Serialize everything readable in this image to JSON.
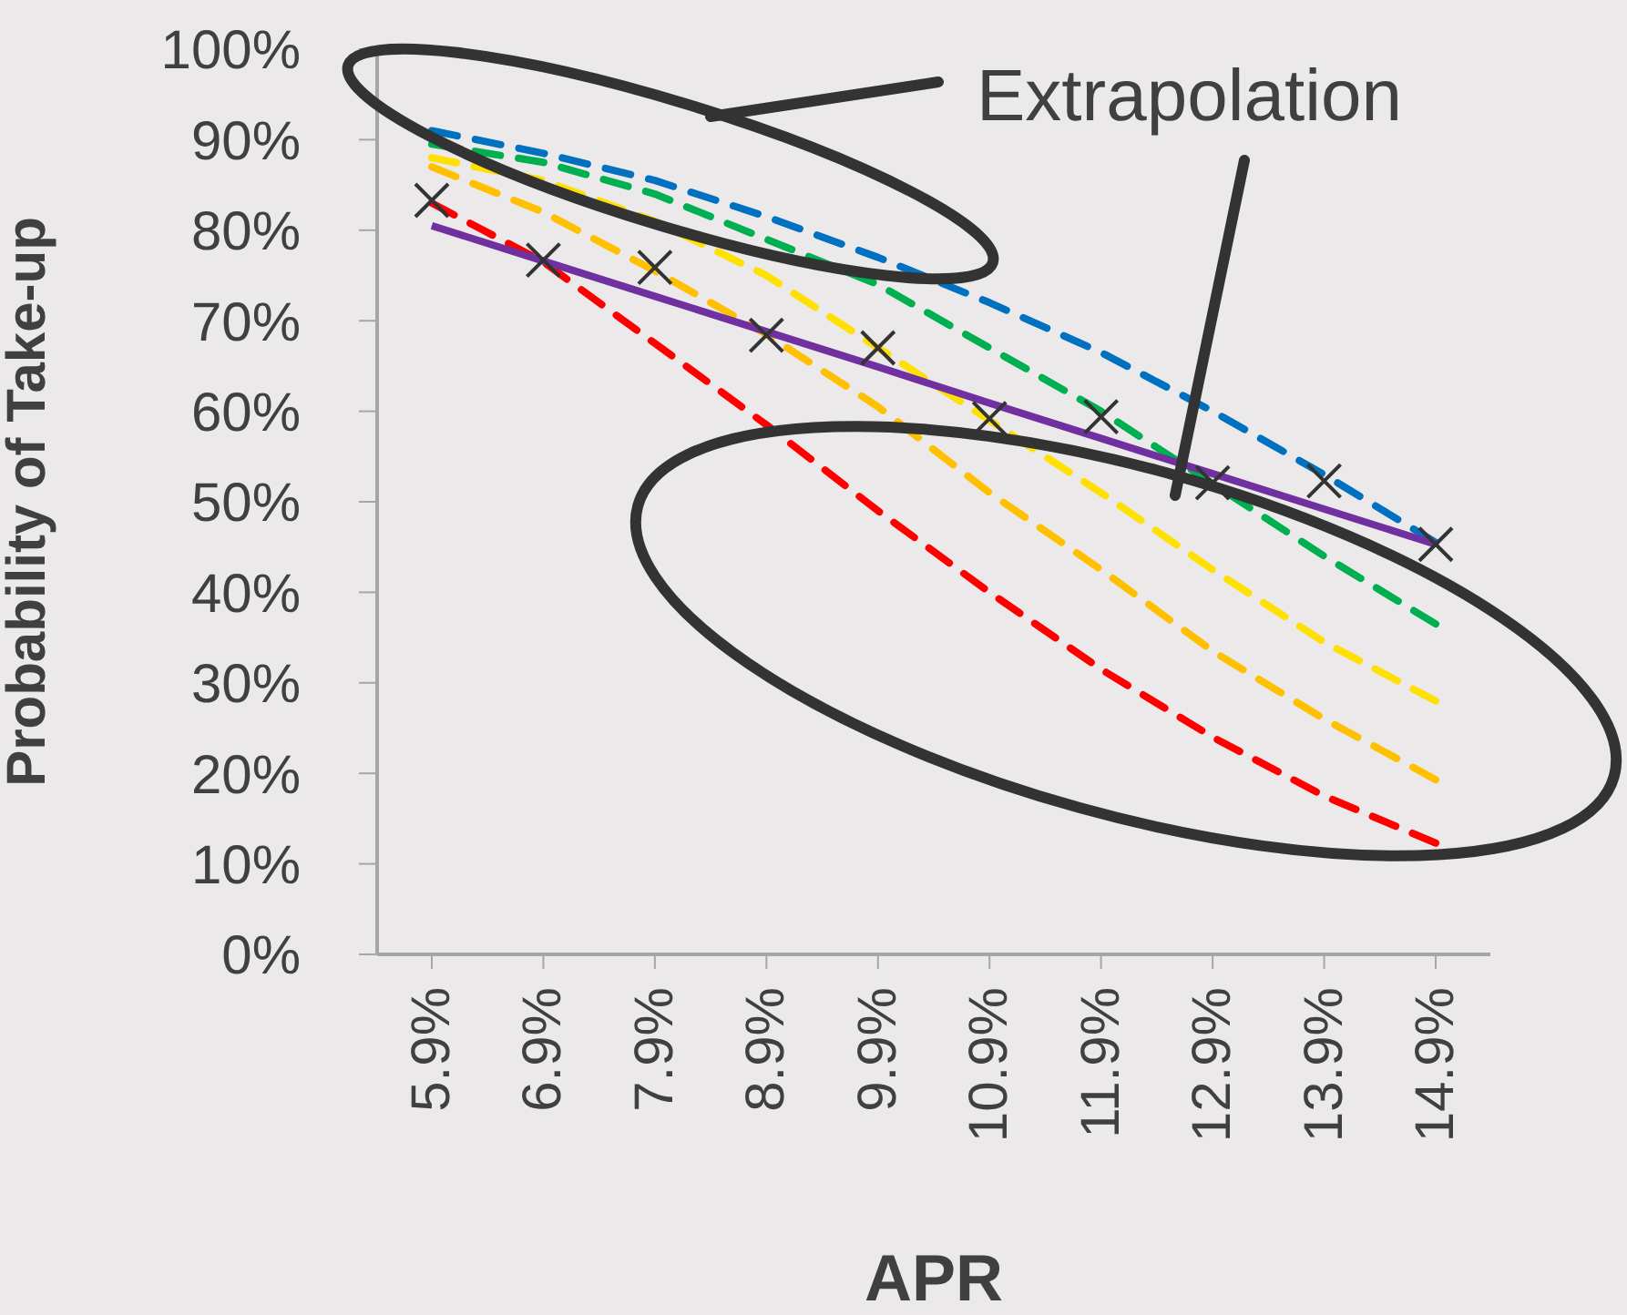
{
  "chart_data": {
    "type": "line",
    "xlabel": "APR",
    "ylabel": "Probability of Take-up",
    "categories": [
      "5.9%",
      "6.9%",
      "7.9%",
      "8.9%",
      "9.9%",
      "10.9%",
      "11.9%",
      "12.9%",
      "13.9%",
      "14.9%"
    ],
    "ylim": [
      0,
      100
    ],
    "yticks": [
      {
        "value": 0,
        "label": "0%"
      },
      {
        "value": 10,
        "label": "10%"
      },
      {
        "value": 20,
        "label": "20%"
      },
      {
        "value": 30,
        "label": "30%"
      },
      {
        "value": 40,
        "label": "40%"
      },
      {
        "value": 50,
        "label": "50%"
      },
      {
        "value": 60,
        "label": "60%"
      },
      {
        "value": 70,
        "label": "70%"
      },
      {
        "value": 80,
        "label": "80%"
      },
      {
        "value": 90,
        "label": "90%"
      },
      {
        "value": 100,
        "label": "100%"
      }
    ],
    "grid": false,
    "annotations": [
      "Extrapolation"
    ],
    "series": [
      {
        "color": "#0070c0",
        "line_style": "dashed",
        "marker": "none",
        "values": [
          91,
          88.5,
          85.5,
          81.5,
          77,
          72,
          66.5,
          60,
          53,
          45.5
        ]
      },
      {
        "color": "#00b050",
        "line_style": "dashed",
        "marker": "none",
        "values": [
          89.5,
          87.5,
          84,
          79,
          74,
          67,
          60,
          52,
          44,
          36.5
        ]
      },
      {
        "color": "#ffe000",
        "line_style": "dashed",
        "marker": "none",
        "values": [
          88,
          85.5,
          81,
          75,
          67,
          59,
          51,
          42.5,
          34.5,
          28
        ]
      },
      {
        "color": "#ffc000",
        "line_style": "dashed",
        "marker": "none",
        "values": [
          87,
          82,
          75.5,
          68.5,
          60.5,
          51,
          42.5,
          33.5,
          26,
          19.3
        ]
      },
      {
        "color": "#ff0000",
        "line_style": "dashed",
        "marker": "none",
        "values": [
          83,
          76.5,
          67.5,
          58.5,
          49,
          40,
          31.5,
          24,
          17.5,
          12.3
        ]
      },
      {
        "color": "#7030a0",
        "line_style": "solid",
        "marker": "none",
        "values": [
          80.5,
          76.6,
          72.7,
          68.8,
          64.9,
          60.9,
          57,
          53.1,
          49.2,
          45.3
        ]
      },
      {
        "type": "scatter",
        "color": "#333333",
        "marker": "cross",
        "values": [
          83.3,
          76.7,
          75.9,
          68.4,
          67,
          59.2,
          59.4,
          52.1,
          52.3,
          45.3
        ]
      }
    ]
  }
}
